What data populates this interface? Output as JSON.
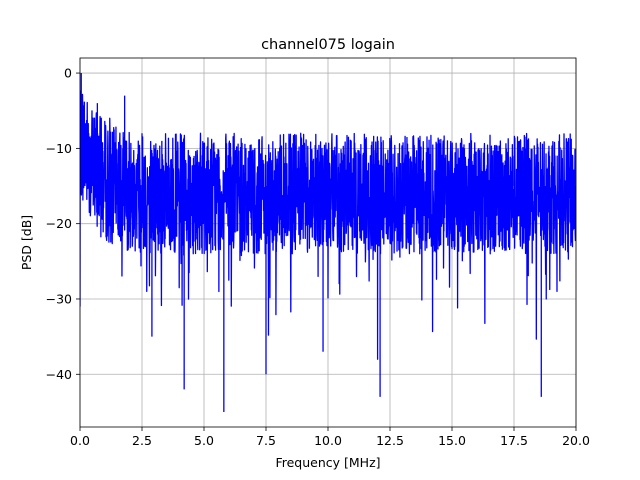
{
  "chart_data": {
    "type": "line",
    "title": "channel075 logain",
    "xlabel": "Frequency [MHz]",
    "ylabel": "PSD [dB]",
    "xlim": [
      0,
      20
    ],
    "ylim": [
      -47,
      2
    ],
    "xticks": [
      0,
      2.5,
      5,
      7.5,
      10,
      12.5,
      15,
      17.5,
      20
    ],
    "xtick_labels": [
      "0.0",
      "2.5",
      "5.0",
      "7.5",
      "10.0",
      "12.5",
      "15.0",
      "17.5",
      "20.0"
    ],
    "yticks": [
      0,
      -10,
      -20,
      -30,
      -40
    ],
    "ytick_labels": [
      "0",
      "−10",
      "−20",
      "−30",
      "−40"
    ],
    "grid": true,
    "series_color": "#0000ff",
    "series": [
      {
        "x": [
          0,
          0.05,
          0.1,
          0.2,
          0.35,
          0.5,
          0.7,
          0.9,
          1.2,
          1.5,
          1.8,
          2.0,
          2.5,
          2.9,
          3.3,
          3.8,
          4.2,
          4.6,
          5.0,
          5.4,
          5.8,
          6.2,
          6.6,
          7.0,
          7.5,
          8.0,
          8.5,
          9.0,
          9.5,
          9.8,
          10.5,
          11.0,
          11.5,
          12.1,
          12.5,
          13.0,
          13.5,
          14.0,
          14.5,
          15.0,
          15.5,
          16.0,
          16.5,
          17.0,
          17.5,
          18.0,
          18.6,
          19.0,
          19.5,
          20.0
        ],
        "y": [
          -31,
          0,
          -5,
          -12,
          -8,
          -10,
          -4,
          -14,
          -6,
          -12,
          -3,
          -16,
          -8,
          -35,
          -9,
          -15,
          -42,
          -11,
          -20,
          -13,
          -45,
          -10,
          -19,
          -12,
          -40,
          -14,
          -18,
          -11,
          -22,
          -37,
          -12,
          -18,
          -13,
          -43,
          -15,
          -20,
          -12,
          -19,
          -14,
          -17,
          -10,
          -22,
          -15,
          -19,
          -11,
          -20,
          -43,
          -17,
          -15,
          -19
        ]
      }
    ]
  }
}
